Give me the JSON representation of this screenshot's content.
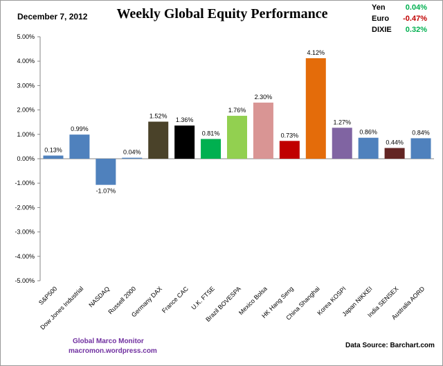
{
  "header": {
    "date": "December 7, 2012",
    "title": "Weekly Global Equity Performance"
  },
  "currencies": [
    {
      "name": "Yen",
      "value": "0.04%",
      "color": "#00b050"
    },
    {
      "name": "Euro",
      "value": "-0.47%",
      "color": "#c00000"
    },
    {
      "name": "DIXIE",
      "value": "0.32%",
      "color": "#00b050"
    }
  ],
  "footer": {
    "brand": "Global  Marco  Monitor",
    "url": "macromon.wordpress.com",
    "source": "Data Source:    Barchart.com"
  },
  "chart_data": {
    "type": "bar",
    "title": "Weekly Global Equity Performance",
    "ylim": [
      -5,
      5
    ],
    "yticks": [
      "5.00%",
      "4.00%",
      "3.00%",
      "2.00%",
      "1.00%",
      "0.00%",
      "-1.00%",
      "-2.00%",
      "-3.00%",
      "-4.00%",
      "-5.00%"
    ],
    "grid": false,
    "categories": [
      "S&P500",
      "Dow Jones Industrial",
      "NASDAQ",
      "Russell 2000",
      "Germany DAX",
      "France CAC",
      "U.K. FTSE",
      "Brazil BOVESPA",
      "Mexico Bolsa",
      "HK Hang Seng",
      "China Shanghai",
      "Korea KOSPI",
      "Japan NIKKEI",
      "India SENSEX",
      "Australia AORD"
    ],
    "values": [
      0.13,
      0.99,
      -1.07,
      0.04,
      1.52,
      1.36,
      0.81,
      1.76,
      2.3,
      0.73,
      4.12,
      1.27,
      0.86,
      0.44,
      0.84
    ],
    "labels": [
      "0.13%",
      "0.99%",
      "-1.07%",
      "0.04%",
      "1.52%",
      "1.36%",
      "0.81%",
      "1.76%",
      "2.30%",
      "0.73%",
      "4.12%",
      "1.27%",
      "0.86%",
      "0.44%",
      "0.84%"
    ],
    "colors": [
      "#4f81bd",
      "#4f81bd",
      "#4f81bd",
      "#4f81bd",
      "#4a4229",
      "#000000",
      "#00b050",
      "#92d050",
      "#d99594",
      "#c00000",
      "#e46c0a",
      "#8064a2",
      "#4f81bd",
      "#632523",
      "#4f81bd"
    ]
  }
}
